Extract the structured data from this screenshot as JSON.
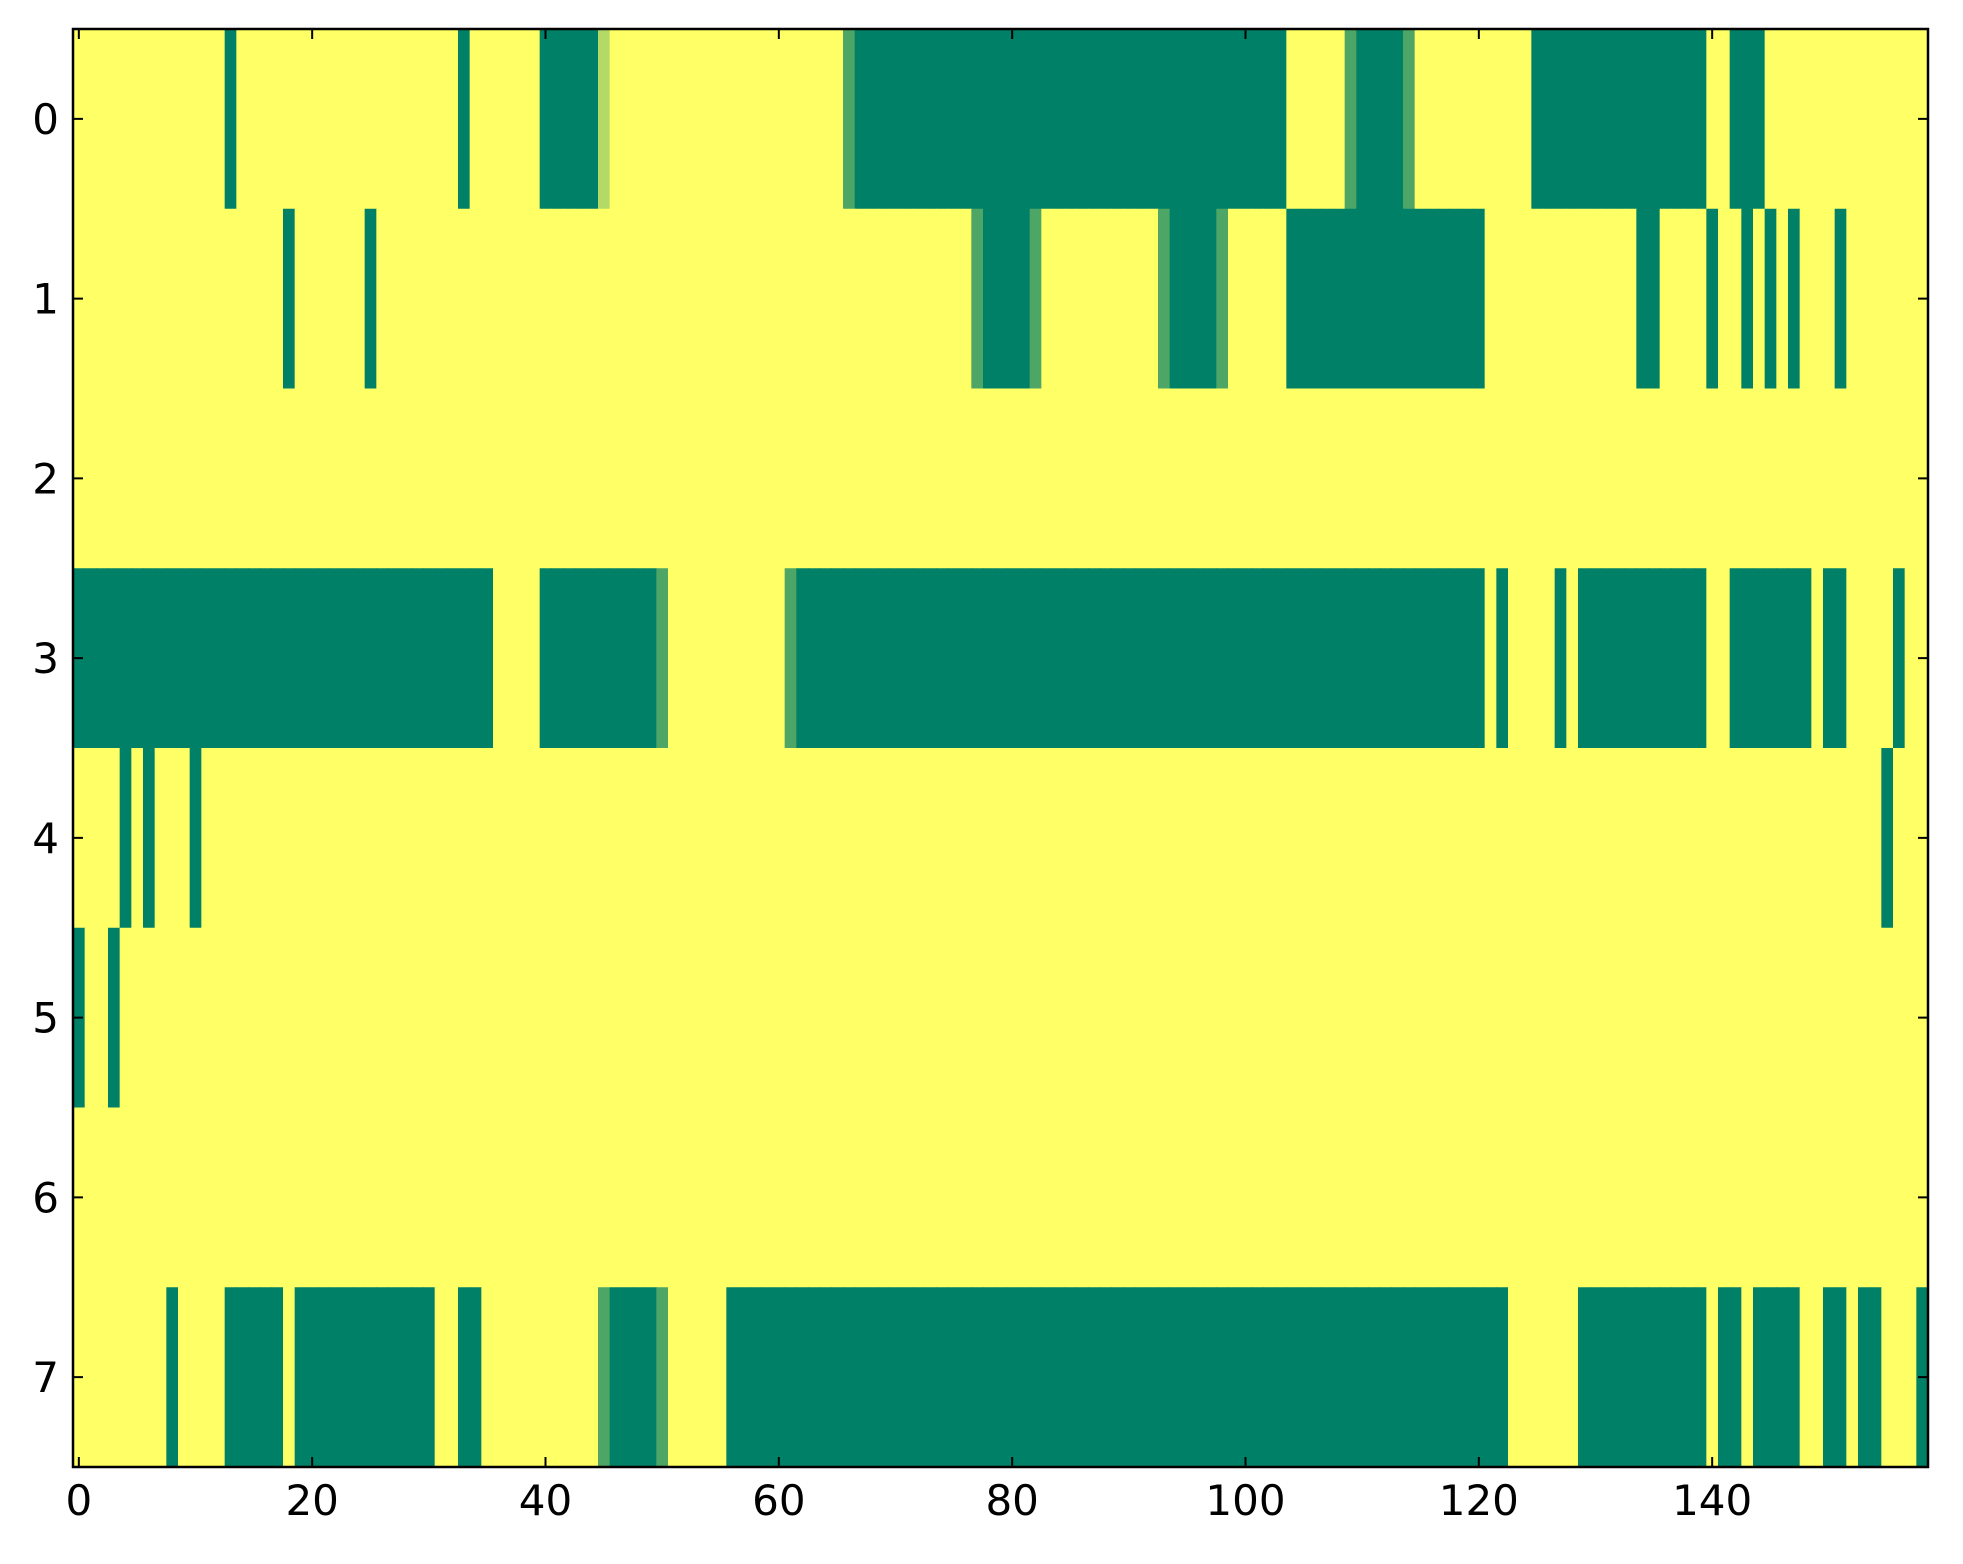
{
  "chart_data": {
    "type": "heatmap",
    "colormap": "summer",
    "zlim": [
      0,
      1
    ],
    "xlim": [
      -0.5,
      158.5
    ],
    "ylim": [
      7.5,
      -0.5
    ],
    "xticks": [
      0,
      20,
      40,
      60,
      80,
      100,
      120,
      140
    ],
    "yticks": [
      0,
      1,
      2,
      3,
      4,
      5,
      6,
      7
    ],
    "z": [
      [
        1,
        1,
        1,
        1,
        1,
        1,
        1,
        1,
        1,
        1,
        1,
        1,
        1,
        0,
        1,
        1,
        1,
        1,
        1,
        1,
        1,
        1,
        1,
        1,
        1,
        1,
        1,
        1,
        1,
        1,
        1,
        1,
        1,
        0,
        1,
        1,
        1,
        1,
        1,
        1,
        0,
        0,
        0,
        0,
        0,
        0.7,
        1,
        1,
        1,
        1,
        1,
        1,
        1,
        1,
        1,
        1,
        1,
        1,
        1,
        1,
        1,
        1,
        1,
        1,
        1,
        1,
        0.3,
        0,
        0,
        0,
        0,
        0,
        0,
        0,
        0,
        0,
        0,
        0,
        0,
        0,
        0,
        0,
        0,
        0,
        0,
        0,
        0,
        0,
        0,
        0,
        0,
        0,
        0,
        0,
        0,
        0,
        0,
        0,
        0,
        0,
        0,
        0,
        0,
        0,
        1,
        1,
        1,
        1,
        1,
        0.3,
        0,
        0,
        0,
        0,
        0.3,
        1,
        1,
        1,
        1,
        1,
        1,
        1,
        1,
        1,
        1,
        0,
        0,
        0,
        0,
        0,
        0,
        0,
        0,
        0,
        0,
        0,
        0,
        0,
        0,
        0,
        1,
        1,
        0,
        0,
        0,
        1,
        1,
        1,
        1,
        1,
        1,
        1,
        1,
        1,
        1,
        1,
        1,
        1,
        1
      ],
      [
        1,
        1,
        1,
        1,
        1,
        1,
        1,
        1,
        1,
        1,
        1,
        1,
        1,
        1,
        1,
        1,
        1,
        1,
        0,
        1,
        1,
        1,
        1,
        1,
        1,
        0,
        1,
        1,
        1,
        1,
        1,
        1,
        1,
        1,
        1,
        1,
        1,
        1,
        1,
        1,
        1,
        1,
        1,
        1,
        1,
        1,
        1,
        1,
        1,
        1,
        1,
        1,
        1,
        1,
        1,
        1,
        1,
        1,
        1,
        1,
        1,
        1,
        1,
        1,
        1,
        1,
        1,
        1,
        1,
        1,
        1,
        1,
        1,
        1,
        1,
        1,
        1,
        0.3,
        0,
        0,
        0,
        0,
        0.3,
        1,
        1,
        1,
        1,
        1,
        1,
        1,
        1,
        1,
        1,
        0.3,
        0,
        0,
        0,
        0,
        0.3,
        1,
        1,
        1,
        1,
        1,
        0,
        0,
        0,
        0,
        0,
        0,
        0,
        0,
        0,
        0,
        0,
        0,
        0,
        0,
        0,
        0,
        0,
        1,
        1,
        1,
        1,
        1,
        1,
        1,
        1,
        1,
        1,
        1,
        1,
        1,
        0,
        0,
        1,
        1,
        1,
        1,
        0,
        1,
        1,
        0,
        1,
        0,
        1,
        0,
        1,
        1,
        1,
        0,
        1,
        1,
        1,
        1,
        1,
        1,
        1
      ],
      [
        1,
        1,
        1,
        1,
        1,
        1,
        1,
        1,
        1,
        1,
        1,
        1,
        1,
        1,
        1,
        1,
        1,
        1,
        1,
        1,
        1,
        1,
        1,
        1,
        1,
        1,
        1,
        1,
        1,
        1,
        1,
        1,
        1,
        1,
        1,
        1,
        1,
        1,
        1,
        1,
        1,
        1,
        1,
        1,
        1,
        1,
        1,
        1,
        1,
        1,
        1,
        1,
        1,
        1,
        1,
        1,
        1,
        1,
        1,
        1,
        1,
        1,
        1,
        1,
        1,
        1,
        1,
        1,
        1,
        1,
        1,
        1,
        1,
        1,
        1,
        1,
        1,
        1,
        1,
        1,
        1,
        1,
        1,
        1,
        1,
        1,
        1,
        1,
        1,
        1,
        1,
        1,
        1,
        1,
        1,
        1,
        1,
        1,
        1,
        1,
        1,
        1,
        1,
        1,
        1,
        1,
        1,
        1,
        1,
        1,
        1,
        1,
        1,
        1,
        1,
        1,
        1,
        1,
        1,
        1,
        1,
        1,
        1,
        1,
        1,
        1,
        1,
        1,
        1,
        1,
        1,
        1,
        1,
        1,
        1,
        1,
        1,
        1,
        1,
        1,
        1,
        1,
        1,
        1,
        1,
        1,
        1,
        1,
        1,
        1,
        1,
        1,
        1,
        1,
        1,
        1,
        1,
        1,
        1
      ],
      [
        0,
        0,
        0,
        0,
        0,
        0,
        0,
        0,
        0,
        0,
        0,
        0,
        0,
        0,
        0,
        0,
        0,
        0,
        0,
        0,
        0,
        0,
        0,
        0,
        0,
        0,
        0,
        0,
        0,
        0,
        0,
        0,
        0,
        0,
        0,
        0,
        1,
        1,
        1,
        1,
        0,
        0,
        0,
        0,
        0,
        0,
        0,
        0,
        0,
        0,
        0.3,
        1,
        1,
        1,
        1,
        1,
        1,
        1,
        1,
        1,
        1,
        0.3,
        0,
        0,
        0,
        0,
        0,
        0,
        0,
        0,
        0,
        0,
        0,
        0,
        0,
        0,
        0,
        0,
        0,
        0,
        0,
        0,
        0,
        0,
        0,
        0,
        0,
        0,
        0,
        0,
        0,
        0,
        0,
        0,
        0,
        0,
        0,
        0,
        0,
        0,
        0,
        0,
        0,
        0,
        0,
        0,
        0,
        0,
        0,
        0,
        0,
        0,
        0,
        0,
        0,
        0,
        0,
        0,
        0,
        0,
        0,
        1,
        0,
        1,
        1,
        1,
        1,
        0,
        1,
        0,
        0,
        0,
        0,
        0,
        0,
        0,
        0,
        0,
        0,
        0,
        1,
        1,
        0,
        0,
        0,
        0,
        0,
        0,
        0,
        1,
        0,
        0,
        1,
        1,
        1,
        1,
        0,
        1,
        1
      ],
      [
        1,
        1,
        1,
        1,
        0,
        1,
        0,
        1,
        1,
        1,
        0,
        1,
        1,
        1,
        1,
        1,
        1,
        1,
        1,
        1,
        1,
        1,
        1,
        1,
        1,
        1,
        1,
        1,
        1,
        1,
        1,
        1,
        1,
        1,
        1,
        1,
        1,
        1,
        1,
        1,
        1,
        1,
        1,
        1,
        1,
        1,
        1,
        1,
        1,
        1,
        1,
        1,
        1,
        1,
        1,
        1,
        1,
        1,
        1,
        1,
        1,
        1,
        1,
        1,
        1,
        1,
        1,
        1,
        1,
        1,
        1,
        1,
        1,
        1,
        1,
        1,
        1,
        1,
        1,
        1,
        1,
        1,
        1,
        1,
        1,
        1,
        1,
        1,
        1,
        1,
        1,
        1,
        1,
        1,
        1,
        1,
        1,
        1,
        1,
        1,
        1,
        1,
        1,
        1,
        1,
        1,
        1,
        1,
        1,
        1,
        1,
        1,
        1,
        1,
        1,
        1,
        1,
        1,
        1,
        1,
        1,
        1,
        1,
        1,
        1,
        1,
        1,
        1,
        1,
        1,
        1,
        1,
        1,
        1,
        1,
        1,
        1,
        1,
        1,
        1,
        1,
        1,
        1,
        1,
        1,
        1,
        1,
        1,
        1,
        1,
        1,
        1,
        1,
        1,
        1,
        0,
        1,
        1,
        1
      ],
      [
        0,
        1,
        1,
        0,
        1,
        1,
        1,
        1,
        1,
        1,
        1,
        1,
        1,
        1,
        1,
        1,
        1,
        1,
        1,
        1,
        1,
        1,
        1,
        1,
        1,
        1,
        1,
        1,
        1,
        1,
        1,
        1,
        1,
        1,
        1,
        1,
        1,
        1,
        1,
        1,
        1,
        1,
        1,
        1,
        1,
        1,
        1,
        1,
        1,
        1,
        1,
        1,
        1,
        1,
        1,
        1,
        1,
        1,
        1,
        1,
        1,
        1,
        1,
        1,
        1,
        1,
        1,
        1,
        1,
        1,
        1,
        1,
        1,
        1,
        1,
        1,
        1,
        1,
        1,
        1,
        1,
        1,
        1,
        1,
        1,
        1,
        1,
        1,
        1,
        1,
        1,
        1,
        1,
        1,
        1,
        1,
        1,
        1,
        1,
        1,
        1,
        1,
        1,
        1,
        1,
        1,
        1,
        1,
        1,
        1,
        1,
        1,
        1,
        1,
        1,
        1,
        1,
        1,
        1,
        1,
        1,
        1,
        1,
        1,
        1,
        1,
        1,
        1,
        1,
        1,
        1,
        1,
        1,
        1,
        1,
        1,
        1,
        1,
        1,
        1,
        1,
        1,
        1,
        1,
        1,
        1,
        1,
        1,
        1,
        1,
        1,
        1,
        1,
        1,
        1,
        1,
        1,
        1,
        1
      ],
      [
        1,
        1,
        1,
        1,
        1,
        1,
        1,
        1,
        1,
        1,
        1,
        1,
        1,
        1,
        1,
        1,
        1,
        1,
        1,
        1,
        1,
        1,
        1,
        1,
        1,
        1,
        1,
        1,
        1,
        1,
        1,
        1,
        1,
        1,
        1,
        1,
        1,
        1,
        1,
        1,
        1,
        1,
        1,
        1,
        1,
        1,
        1,
        1,
        1,
        1,
        1,
        1,
        1,
        1,
        1,
        1,
        1,
        1,
        1,
        1,
        1,
        1,
        1,
        1,
        1,
        1,
        1,
        1,
        1,
        1,
        1,
        1,
        1,
        1,
        1,
        1,
        1,
        1,
        1,
        1,
        1,
        1,
        1,
        1,
        1,
        1,
        1,
        1,
        1,
        1,
        1,
        1,
        1,
        1,
        1,
        1,
        1,
        1,
        1,
        1,
        1,
        1,
        1,
        1,
        1,
        1,
        1,
        1,
        1,
        1,
        1,
        1,
        1,
        1,
        1,
        1,
        1,
        1,
        1,
        1,
        1,
        1,
        1,
        1,
        1,
        1,
        1,
        1,
        1,
        1,
        1,
        1,
        1,
        1,
        1,
        1,
        1,
        1,
        1,
        1,
        1,
        1,
        1,
        1,
        1,
        1,
        1,
        1,
        1,
        1,
        1,
        1,
        1,
        1,
        1,
        1,
        1,
        1,
        1
      ],
      [
        1,
        1,
        1,
        1,
        1,
        1,
        1,
        1,
        0,
        1,
        1,
        1,
        1,
        0,
        0,
        0,
        0,
        0,
        1,
        0,
        0,
        0,
        0,
        0,
        0,
        0,
        0,
        0,
        0,
        0,
        0,
        1,
        1,
        0,
        0,
        1,
        1,
        1,
        1,
        1,
        1,
        1,
        1,
        1,
        1,
        0.3,
        0,
        0,
        0,
        0,
        0.3,
        1,
        1,
        1,
        1,
        1,
        0,
        0,
        0,
        0,
        0,
        0,
        0,
        0,
        0,
        0,
        0,
        0,
        0,
        0,
        0,
        0,
        0,
        0,
        0,
        0,
        0,
        0,
        0,
        0,
        0,
        0,
        0,
        0,
        0,
        0,
        0,
        0,
        0,
        0,
        0,
        0,
        0,
        0,
        0,
        0,
        0,
        0,
        0,
        0,
        0,
        0,
        0,
        0,
        0,
        0,
        0,
        0,
        0,
        0,
        0,
        0,
        0,
        0,
        0,
        0,
        0,
        0,
        0,
        0,
        0,
        0,
        0,
        1,
        1,
        1,
        1,
        1,
        1,
        0,
        0,
        0,
        0,
        0,
        0,
        0,
        0,
        0,
        0,
        0,
        1,
        0,
        0,
        1,
        0,
        0,
        0,
        0,
        1,
        1,
        0,
        0,
        1,
        0,
        0,
        1,
        1,
        1,
        0
      ]
    ]
  }
}
